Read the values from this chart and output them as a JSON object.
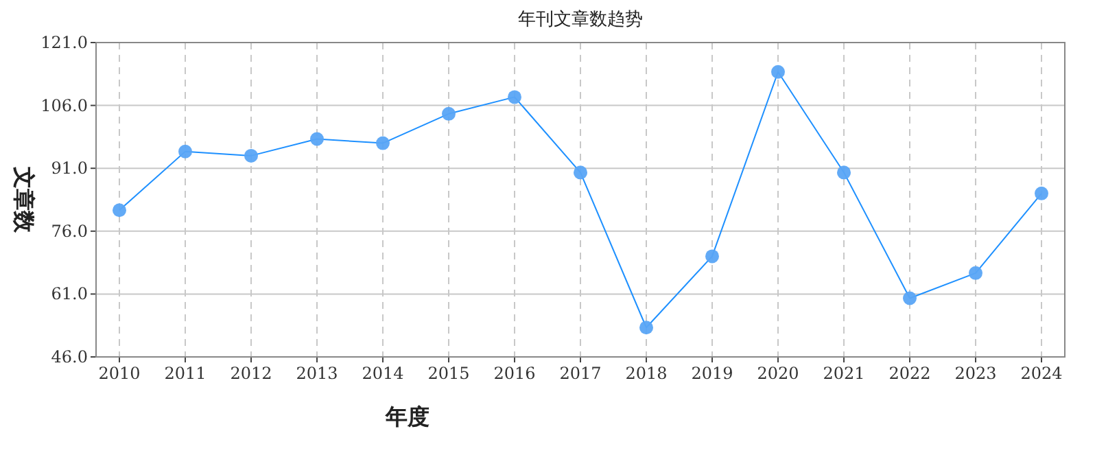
{
  "chart_data": {
    "type": "line",
    "title": "年刊文章数趋势",
    "xlabel": "年度",
    "ylabel": "文章数",
    "categories": [
      "2010",
      "2011",
      "2012",
      "2013",
      "2014",
      "2015",
      "2016",
      "2017",
      "2018",
      "2019",
      "2020",
      "2021",
      "2022",
      "2023",
      "2024"
    ],
    "series": [
      {
        "color": "#1e90ff",
        "values": [
          81,
          95,
          94,
          98,
          97,
          104,
          108,
          90,
          53,
          70,
          114,
          90,
          60,
          66,
          85
        ]
      }
    ],
    "ylim": [
      46,
      121
    ],
    "yticks": [
      {
        "value": 46,
        "label": "46.0"
      },
      {
        "value": 61,
        "label": "61.0"
      },
      {
        "value": 76,
        "label": "76.0"
      },
      {
        "value": 91,
        "label": "91.0"
      },
      {
        "value": 106,
        "label": "106.0"
      },
      {
        "value": 121,
        "label": "121.0"
      }
    ],
    "grid": true,
    "marker": "circle",
    "line_style": "solid"
  }
}
